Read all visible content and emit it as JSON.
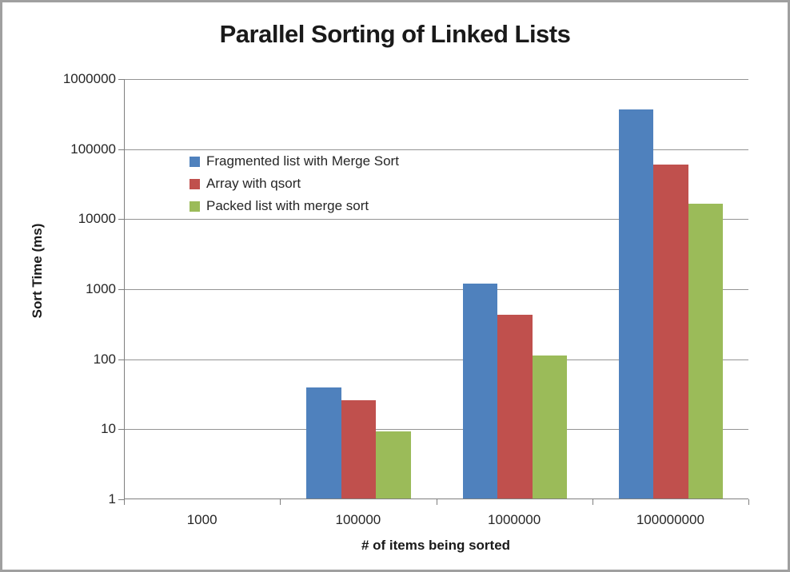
{
  "window": {
    "background": "#ffffff",
    "frame_border_color": "#a0a0a0"
  },
  "chart_data": {
    "type": "bar",
    "title": "Parallel Sorting of Linked Lists",
    "xlabel": "# of items being sorted",
    "ylabel": "Sort Time (ms)",
    "y_scale": "log10",
    "ylim": [
      1,
      1000000
    ],
    "y_ticks": [
      "1",
      "10",
      "100",
      "1000",
      "10000",
      "100000",
      "1000000"
    ],
    "categories": [
      "1000",
      "100000",
      "1000000",
      "100000000"
    ],
    "series": [
      {
        "name": "Fragmented list with Merge Sort",
        "color": "#4F81BD",
        "values": [
          null,
          39,
          1170,
          355000
        ]
      },
      {
        "name": "Array with qsort",
        "color": "#C0504D",
        "values": [
          null,
          25,
          420,
          58000
        ]
      },
      {
        "name": "Packed list with merge sort",
        "color": "#9BBB59",
        "values": [
          null,
          9,
          110,
          16000
        ]
      }
    ],
    "legend_position": "inside-upper-left",
    "grid": "horizontal",
    "gridline_color": "#949494",
    "axis_color": "#7f7f7f",
    "text_color": "#262626"
  }
}
